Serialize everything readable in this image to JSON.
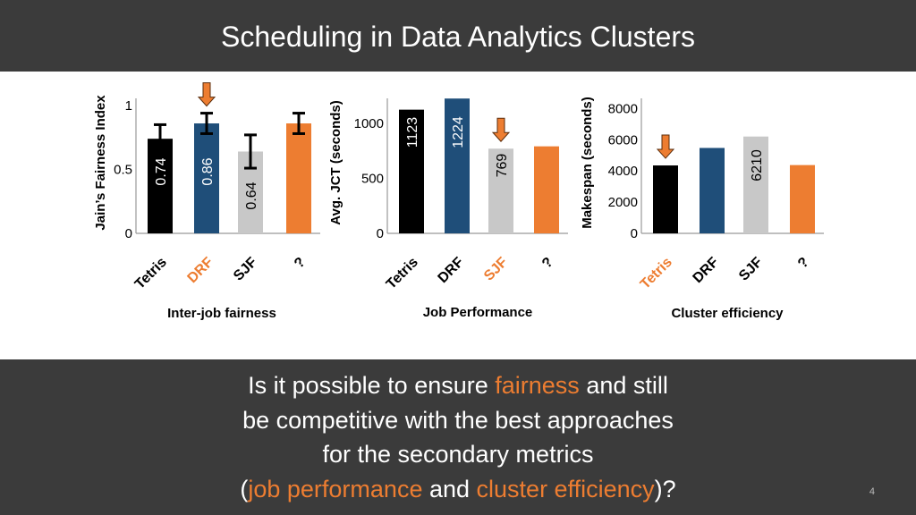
{
  "slide": {
    "title": "Scheduling in Data Analytics Clusters",
    "page_number": "4",
    "question": {
      "line1_a": "Is it possible to ensure ",
      "line1_hl": "fairness",
      "line1_b": " and still",
      "line2": "be competitive with the best approaches",
      "line3": "for the secondary metrics",
      "line4_open": "(",
      "line4_hl1": "job performance",
      "line4_mid": " and ",
      "line4_hl2": "cluster efficiency",
      "line4_close": ")?"
    }
  },
  "colors": {
    "black": "#000000",
    "blue": "#1f4e79",
    "gray": "#c8c8c8",
    "orange": "#ed7d31",
    "dark_bg": "#3b3b3b"
  },
  "chart_data": [
    {
      "type": "bar",
      "caption": "Inter-job fairness",
      "ylabel": "Jain’s Fairness Index",
      "ylim": [
        0,
        1
      ],
      "yticks": [
        {
          "value": 0,
          "label": "0"
        },
        {
          "value": 0.5,
          "label": "0.5"
        },
        {
          "value": 1,
          "label": "1"
        }
      ],
      "categories": [
        "Tetris",
        "DRF",
        "SJF",
        "?"
      ],
      "values": [
        0.74,
        0.86,
        0.64,
        0.86
      ],
      "value_labels": [
        "0.74",
        "0.86",
        "0.64",
        ""
      ],
      "errors": [
        0.11,
        0.08,
        0.13,
        0.08
      ],
      "bar_colors": [
        "#000000",
        "#1f4e79",
        "#c8c8c8",
        "#ed7d31"
      ],
      "value_label_colors": [
        "#ffffff",
        "#ffffff",
        "#000000",
        "#ffffff"
      ],
      "category_colors": [
        "#000000",
        "#ed7d31",
        "#000000",
        "#000000"
      ],
      "highlight_index": 1
    },
    {
      "type": "bar",
      "caption": "Job Performance",
      "ylabel": "Avg. JCT (seconds)",
      "ylim": [
        0,
        1250
      ],
      "yticks": [
        {
          "value": 0,
          "label": "0"
        },
        {
          "value": 500,
          "label": "500"
        },
        {
          "value": 1000,
          "label": "1000"
        }
      ],
      "categories": [
        "Tetris",
        "DRF",
        "SJF",
        "?"
      ],
      "values": [
        1123,
        1224,
        769,
        790
      ],
      "value_labels": [
        "1123",
        "1224",
        "769",
        ""
      ],
      "errors": [
        0,
        0,
        0,
        0
      ],
      "bar_colors": [
        "#000000",
        "#1f4e79",
        "#c8c8c8",
        "#ed7d31"
      ],
      "value_label_colors": [
        "#ffffff",
        "#ffffff",
        "#000000",
        "#ffffff"
      ],
      "category_colors": [
        "#000000",
        "#000000",
        "#ed7d31",
        "#000000"
      ],
      "highlight_index": 2
    },
    {
      "type": "bar",
      "caption": "Cluster efficiency",
      "ylabel": "Makespan (seconds)",
      "ylim": [
        0,
        8200
      ],
      "yticks": [
        {
          "value": 0,
          "label": "0"
        },
        {
          "value": 2000,
          "label": "2000"
        },
        {
          "value": 4000,
          "label": "4000"
        },
        {
          "value": 6000,
          "label": "6000"
        },
        {
          "value": 8000,
          "label": "8000"
        }
      ],
      "categories": [
        "Tetris",
        "DRF",
        "SJF",
        "?"
      ],
      "values": [
        4356,
        5478,
        6210,
        4380
      ],
      "value_labels": [
        "4356",
        "5478",
        "6210",
        ""
      ],
      "errors": [
        0,
        0,
        0,
        0
      ],
      "bar_colors": [
        "#000000",
        "#1f4e79",
        "#c8c8c8",
        "#ed7d31"
      ],
      "value_label_colors": [
        "#ffffff",
        "#ffffff",
        "#000000",
        "#ffffff"
      ],
      "category_colors": [
        "#ed7d31",
        "#000000",
        "#000000",
        "#000000"
      ],
      "highlight_index": 0
    }
  ]
}
